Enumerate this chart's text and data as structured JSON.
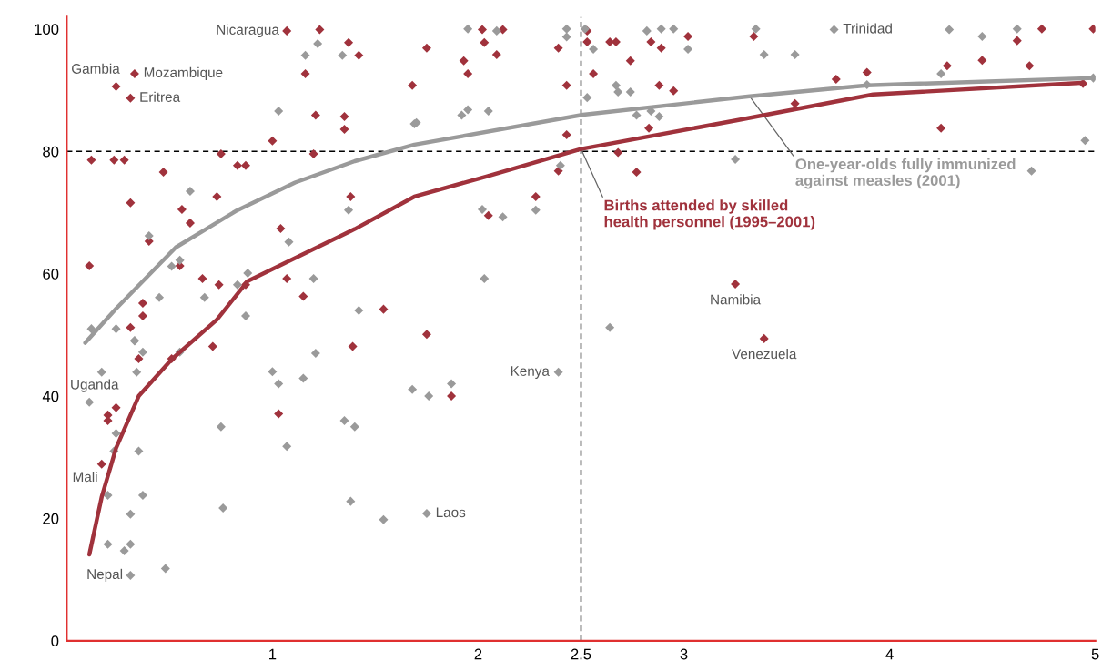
{
  "chart_data": {
    "type": "scatter",
    "xlim": [
      0,
      5
    ],
    "ylim": [
      0,
      102
    ],
    "xticks": [
      1,
      2,
      2.5,
      3,
      4,
      5
    ],
    "yticks": [
      0,
      20,
      40,
      60,
      80,
      100
    ],
    "grid": false,
    "legend": false,
    "ref_lines": [
      {
        "axis": "x",
        "value": 2.5,
        "color": "#000000",
        "line_style": "dashed"
      },
      {
        "axis": "y",
        "value": 80,
        "color": "#000000",
        "line_style": "dashed"
      }
    ],
    "series": [
      {
        "marker": "diamond",
        "color": "#a0323c",
        "x": [
          1.07,
          1.23,
          1.37,
          1.42,
          1.16,
          0.24,
          0.33,
          0.31,
          1.21,
          1.35,
          1.35,
          1.0,
          1.2,
          0.12,
          0.23,
          0.28,
          0.75,
          0.83,
          0.87,
          0.47,
          1.68,
          0.31,
          0.73,
          1.38,
          0.56,
          0.6,
          1.04,
          0.4,
          0.11,
          0.55,
          0.66,
          0.74,
          0.87,
          1.07,
          1.15,
          0.37,
          0.37,
          0.31,
          1.54,
          2.02,
          2.12,
          2.03,
          1.75,
          2.09,
          1.93,
          1.95,
          2.39,
          2.43,
          2.43,
          2.39,
          2.28,
          2.05,
          1.75,
          2.53,
          2.53,
          2.64,
          2.67,
          2.56,
          2.74,
          2.84,
          2.89,
          3.02,
          3.34,
          2.88,
          2.95,
          2.83,
          2.68,
          2.77,
          3.25,
          3.74,
          3.89,
          3.54,
          4.28,
          4.45,
          4.62,
          4.74,
          4.99,
          4.68,
          4.25,
          4.94,
          3.39,
          0.35,
          0.51,
          0.71,
          0.24,
          0.2,
          0.2,
          0.17,
          1.39,
          1.03,
          1.87
        ],
        "values": [
          99.7,
          99.9,
          97.8,
          95.7,
          92.7,
          90.6,
          92.7,
          88.7,
          85.9,
          85.7,
          83.6,
          81.7,
          79.6,
          78.6,
          78.6,
          78.6,
          79.6,
          77.7,
          77.7,
          76.6,
          90.8,
          71.6,
          72.6,
          72.6,
          70.5,
          68.3,
          67.4,
          65.3,
          61.3,
          61.3,
          59.2,
          58.2,
          58.2,
          59.2,
          56.3,
          55.2,
          53.1,
          51.2,
          54.2,
          99.9,
          99.9,
          97.8,
          96.9,
          95.8,
          94.8,
          92.7,
          96.9,
          90.8,
          82.7,
          76.8,
          72.6,
          69.5,
          50.1,
          99.7,
          97.9,
          97.9,
          97.9,
          92.7,
          94.8,
          97.9,
          96.9,
          98.8,
          98.8,
          90.8,
          89.9,
          83.8,
          79.8,
          76.6,
          58.3,
          91.8,
          92.9,
          87.8,
          94.0,
          94.9,
          98.1,
          100,
          100,
          94.0,
          83.8,
          91.1,
          49.4,
          46.1,
          46.1,
          48.1,
          38.1,
          36.9,
          36.0,
          28.9,
          48.1,
          37.1,
          40.0
        ]
      },
      {
        "marker": "diamond",
        "color": "#9a9a9a",
        "x": [
          1.22,
          1.16,
          1.34,
          1.03,
          1.69,
          0.6,
          1.37,
          0.4,
          1.08,
          0.51,
          0.55,
          0.88,
          0.83,
          1.2,
          0.45,
          0.67,
          0.87,
          0.12,
          0.24,
          1.42,
          0.33,
          1.95,
          2.09,
          2.43,
          2.43,
          2.52,
          2.56,
          2.82,
          2.89,
          2.95,
          3.02,
          1.7,
          1.92,
          1.95,
          2.05,
          2.67,
          2.68,
          2.74,
          2.77,
          2.84,
          2.88,
          2.53,
          2.4,
          2.02,
          2.12,
          2.28,
          3.25,
          2.03,
          2.64,
          3.35,
          3.73,
          4.29,
          4.45,
          4.62,
          3.39,
          3.54,
          3.89,
          4.25,
          4.99,
          4.95,
          4.69,
          0.33,
          0.37,
          0.34,
          0.17,
          0.11,
          0.55,
          1.21,
          1.0,
          1.03,
          1.15,
          1.68,
          0.75,
          0.24,
          0.23,
          0.35,
          1.07,
          1.35,
          1.4,
          0.2,
          0.37,
          0.76,
          0.31,
          1.38,
          1.54,
          0.2,
          0.28,
          0.31,
          0.48,
          0.31,
          1.76,
          1.87,
          2.39,
          1.75
        ],
        "values": [
          97.6,
          95.7,
          95.7,
          86.6,
          84.5,
          73.5,
          70.4,
          66.2,
          65.2,
          61.2,
          62.2,
          60.1,
          58.2,
          59.2,
          56.1,
          56.1,
          53.1,
          51.0,
          51.0,
          54.0,
          49.1,
          100,
          99.7,
          100,
          98.7,
          100,
          96.7,
          99.7,
          100,
          100,
          96.7,
          84.7,
          85.9,
          86.8,
          86.6,
          90.8,
          89.7,
          89.7,
          85.9,
          86.6,
          85.7,
          88.8,
          77.7,
          70.5,
          69.3,
          70.4,
          78.7,
          59.2,
          51.2,
          100,
          99.9,
          99.9,
          98.8,
          100,
          95.8,
          95.8,
          90.9,
          92.7,
          92.0,
          81.8,
          76.8,
          49.0,
          47.2,
          43.9,
          43.9,
          39.0,
          47.2,
          47.0,
          44.0,
          42.0,
          42.9,
          41.1,
          35.0,
          33.9,
          31.0,
          31.0,
          31.8,
          36.0,
          35.0,
          23.8,
          23.8,
          21.7,
          20.7,
          22.8,
          19.8,
          15.8,
          14.7,
          15.8,
          11.8,
          10.7,
          40.0,
          42.0,
          43.9,
          20.8
        ]
      },
      {
        "type": "line",
        "marker": "none",
        "name": "Births attended by skilled\nhealth personnel (1995–2001)",
        "color": "#a0323c",
        "x": [
          0.11,
          0.17,
          0.24,
          0.35,
          0.51,
          0.73,
          0.88,
          1.4,
          1.69,
          2.04,
          2.5,
          3.26,
          3.92,
          4.93
        ],
        "values": [
          14.1,
          23.5,
          31.5,
          40,
          46,
          52.5,
          58.8,
          67.3,
          72.6,
          75.9,
          80.4,
          85.1,
          89.3,
          91.2
        ]
      },
      {
        "type": "line",
        "marker": "none",
        "name": "One-year-olds fully immunized\nagainst measles (2001)",
        "color": "#9a9a9a",
        "x": [
          0.09,
          0.24,
          0.53,
          0.82,
          1.11,
          1.4,
          1.69,
          2.51,
          3.32,
          3.89,
          5.0
        ],
        "values": [
          48.7,
          54.3,
          64.3,
          70.2,
          74.9,
          78.4,
          81.1,
          86.0,
          89.0,
          90.8,
          92.0
        ]
      }
    ],
    "annotations": [
      {
        "text": "Nicaragua",
        "x": 1.07,
        "y": 99.7
      },
      {
        "text": "Gambia",
        "x": 0.24,
        "y": 90.6
      },
      {
        "text": "Mozambique",
        "x": 0.33,
        "y": 92.7
      },
      {
        "text": "Eritrea",
        "x": 0.31,
        "y": 88.7
      },
      {
        "text": "Uganda",
        "x": 0.11,
        "y": 39.0
      },
      {
        "text": "Mali",
        "x": 0.17,
        "y": 28.9
      },
      {
        "text": "Nepal",
        "x": 0.31,
        "y": 10.7
      },
      {
        "text": "Laos",
        "x": 1.75,
        "y": 20.8
      },
      {
        "text": "Kenya",
        "x": 2.39,
        "y": 43.9
      },
      {
        "text": "Namibia",
        "x": 3.25,
        "y": 58.3
      },
      {
        "text": "Venezuela",
        "x": 3.39,
        "y": 49.4
      },
      {
        "text": "Trinidad",
        "x": 3.73,
        "y": 99.9
      }
    ]
  }
}
